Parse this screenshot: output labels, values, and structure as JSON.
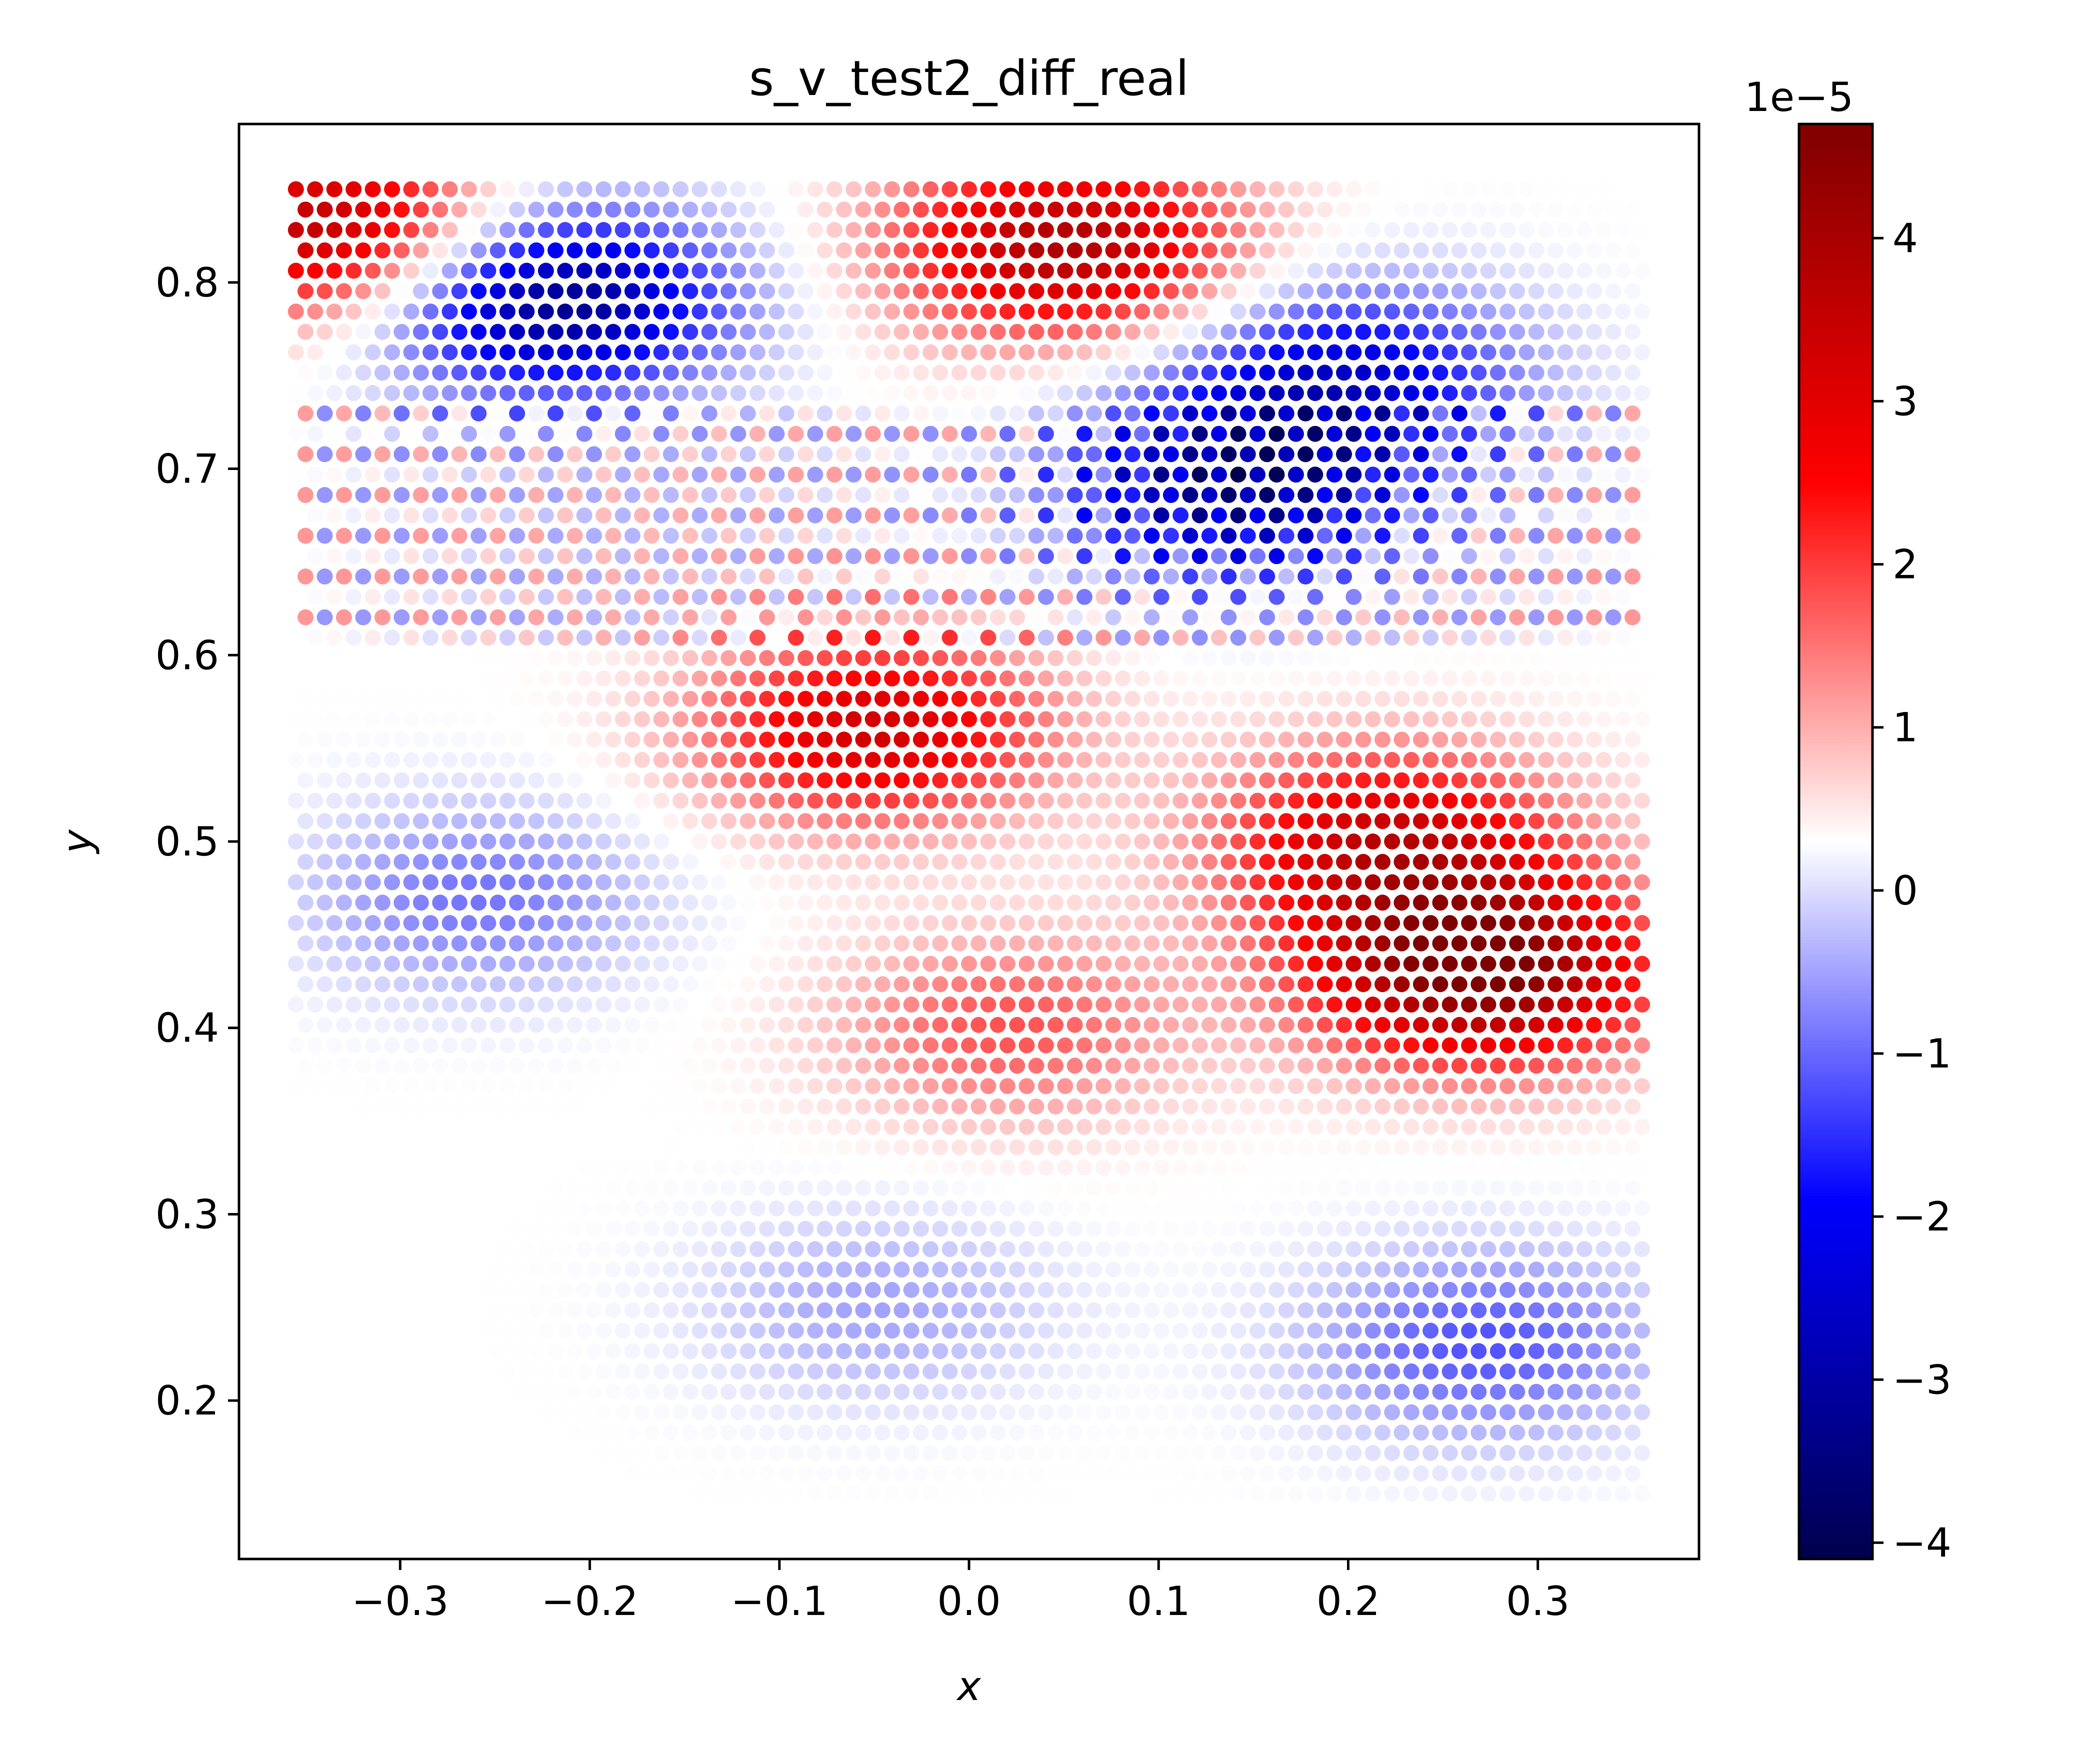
{
  "chart_data": {
    "type": "scatter",
    "title": "s_v_test2_diff_real",
    "xlabel": "x",
    "ylabel": "y",
    "xlim": [
      -0.385,
      0.385
    ],
    "ylim": [
      0.115,
      0.885
    ],
    "x_ticks": [
      -0.3,
      -0.2,
      -0.1,
      0.0,
      0.1,
      0.2,
      0.3
    ],
    "x_tick_labels": [
      "−0.3",
      "−0.2",
      "−0.1",
      "0.0",
      "0.1",
      "0.2",
      "0.3"
    ],
    "y_ticks": [
      0.2,
      0.3,
      0.4,
      0.5,
      0.6,
      0.7,
      0.8
    ],
    "y_tick_labels": [
      "0.2",
      "0.3",
      "0.4",
      "0.5",
      "0.6",
      "0.7",
      "0.8"
    ],
    "grid": false,
    "point_extent": {
      "x": [
        -0.355,
        0.355
      ],
      "y": [
        0.15,
        0.85
      ]
    },
    "colorbar": {
      "colormap": "seismic",
      "range": [
        -4.1,
        4.7
      ],
      "ticks": [
        -4,
        -3,
        -2,
        -1,
        0,
        1,
        2,
        3,
        4
      ],
      "tick_labels": [
        "−4",
        "−3",
        "−2",
        "−1",
        "0",
        "1",
        "2",
        "3",
        "4"
      ],
      "offset_label": "1e−5",
      "colors": [
        "#00004c",
        "#0000ff",
        "#ffffff",
        "#ff0000",
        "#7f0000"
      ]
    },
    "field_features": [
      {
        "x": -0.22,
        "y": 0.79,
        "value": -3.8
      },
      {
        "x": 0.2,
        "y": 0.75,
        "value": -2.5
      },
      {
        "x": 0.14,
        "y": 0.69,
        "value": -3.2
      },
      {
        "x": 0.05,
        "y": 0.82,
        "value": 3.6
      },
      {
        "x": -0.34,
        "y": 0.83,
        "value": 3.5
      },
      {
        "x": 0.27,
        "y": 0.43,
        "value": 4.5
      },
      {
        "x": 0.22,
        "y": 0.5,
        "value": 3.0
      },
      {
        "x": -0.05,
        "y": 0.56,
        "value": 3.0
      },
      {
        "x": -0.26,
        "y": 0.47,
        "value": -1.2
      },
      {
        "x": 0.27,
        "y": 0.23,
        "value": -1.5
      },
      {
        "x": -0.05,
        "y": 0.25,
        "value": -0.8
      },
      {
        "x": 0.02,
        "y": 0.4,
        "value": 1.5
      }
    ]
  }
}
